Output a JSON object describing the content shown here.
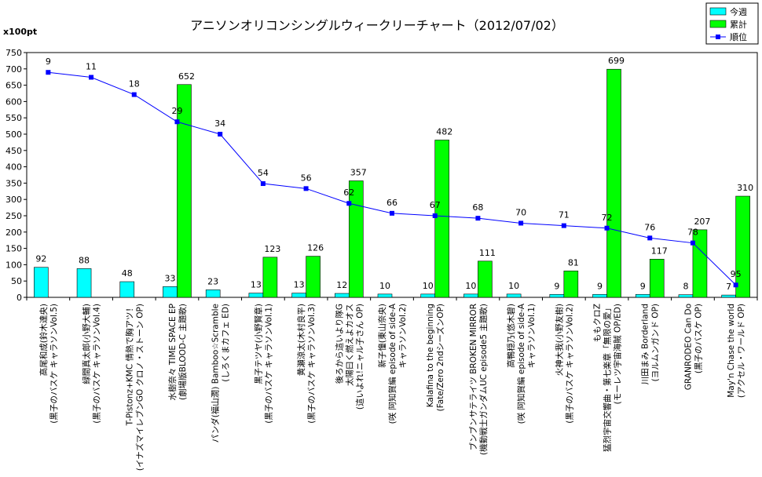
{
  "chart_data": {
    "type": "bar",
    "title": "アニソンオリコンシングルウィークリーチャート（2012/07/02）",
    "unit_label": "x100pt",
    "ylim": [
      0,
      750
    ],
    "yticks": [
      0,
      50,
      100,
      150,
      200,
      250,
      300,
      350,
      400,
      450,
      500,
      550,
      600,
      650,
      700,
      750
    ],
    "grid": false,
    "legend_position": "top-right",
    "categories": [
      [
        "高尾和成(鈴木達央)",
        "(黒子のバスケ キャラソンVol.5)"
      ],
      [
        "緑間真太郎(小野大輔)",
        "(黒子のバスケ キャラソンVol.4)"
      ],
      [
        "T-Pistonz+KMC 情熱で胸アツ！",
        "(イナズマイレブンGO クロノ・ストーン OP)"
      ],
      [
        "水樹奈々 TIME SPACE EP",
        "(劇場版BLOOD-C 主題歌)"
      ],
      [
        "パンダ(福山潤) Bamboo☆Scramble",
        "(しろくまカフェ ED)"
      ],
      [
        "黒子テツヤ(小野賢章)",
        "(黒子のバスケ キャラソンVol.1)"
      ],
      [
        "黄瀬涼太(木村良平)",
        "(黒子のバスケ キャラソンVol.3)"
      ],
      [
        "後ろから這いより隊G",
        "太陽曰く燃えよカオス",
        "(這いよれ!ニャル子さん OP)"
      ],
      [
        "新子憧(東山奈央)",
        "(咲 阿知賀編 episode of side-A",
        "キャラソンVol.2)"
      ],
      [
        "Kalafina to the beginning",
        "(Fate/Zero 2ndシーズンOP)"
      ],
      [
        "ブンブンサテライツ BROKEN MIRROR",
        "(機動戦士ガンダムUC episode5 主題歌)"
      ],
      [
        "高鴨穏乃(悠木碧)",
        "(咲 阿知賀編 episode of side-A",
        "キャラソンVol.1)"
      ],
      [
        "火神大我(小野友樹)",
        "(黒子のバスケ キャラソンVol.2)"
      ],
      [
        "ももクロZ",
        "猛烈宇宙交響曲・第七楽章「無限の愛」",
        "(モーレツ宇宙海賊 OP/ED)"
      ],
      [
        "川田まみ Borderland",
        "(ヨルムンガンド OP)"
      ],
      [
        "GRANRODEO Can Do",
        "(黒子のバスケ OP)"
      ],
      [
        "May'n Chase the world",
        "(アクセル・ワールド OP)"
      ]
    ],
    "series": [
      {
        "name": "今週",
        "type": "bar",
        "color": "#00ffff",
        "values": [
          92,
          88,
          48,
          33,
          23,
          13,
          13,
          12,
          10,
          10,
          10,
          10,
          9,
          9,
          9,
          8,
          7
        ]
      },
      {
        "name": "累計",
        "type": "bar",
        "color": "#00ff00",
        "values": [
          null,
          null,
          null,
          652,
          null,
          123,
          126,
          357,
          null,
          482,
          111,
          null,
          81,
          699,
          117,
          207,
          310
        ]
      },
      {
        "name": "順位",
        "type": "line",
        "color": "#0000ff",
        "values": [
          9,
          11,
          18,
          29,
          34,
          54,
          56,
          62,
          66,
          67,
          68,
          70,
          71,
          72,
          76,
          78,
          95
        ]
      }
    ]
  }
}
